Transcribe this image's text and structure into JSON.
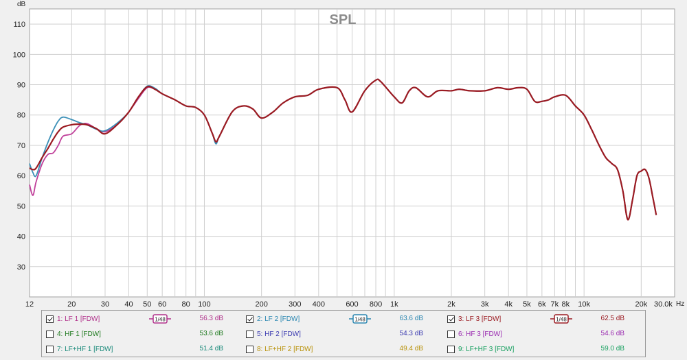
{
  "chart_data": {
    "type": "line",
    "title": "SPL",
    "ylabel": "dB",
    "xlabel": "Hz",
    "xscale": "log",
    "xlim": [
      12,
      30000
    ],
    "ylim": [
      20,
      115
    ],
    "grid": true,
    "y_ticks": [
      "30",
      "40",
      "50",
      "60",
      "70",
      "80",
      "90",
      "100",
      "110"
    ],
    "x_ticks": [
      "12",
      "20",
      "30",
      "40",
      "50",
      "60",
      "80",
      "100",
      "200",
      "300",
      "400",
      "600",
      "800",
      "1k",
      "2k",
      "3k",
      "4k",
      "5k",
      "6k",
      "7k",
      "8k",
      "10k",
      "20k",
      "30.0k"
    ],
    "series": [
      {
        "name": "1: LF 1 [FDW]",
        "color": "#c0409a",
        "points": [
          [
            12,
            57
          ],
          [
            12.5,
            53.5
          ],
          [
            13,
            58
          ],
          [
            14,
            64
          ],
          [
            15,
            67
          ],
          [
            16,
            67.5
          ],
          [
            17,
            70
          ],
          [
            18,
            73
          ],
          [
            20,
            73.8
          ],
          [
            22,
            76.5
          ],
          [
            24,
            77.2
          ],
          [
            27,
            75.5
          ],
          [
            30,
            74.5
          ],
          [
            35,
            77
          ],
          [
            40,
            81
          ],
          [
            45,
            85.5
          ],
          [
            50,
            89
          ],
          [
            55,
            88.5
          ],
          [
            60,
            87
          ],
          [
            70,
            85
          ],
          [
            80,
            83
          ],
          [
            90,
            82.5
          ],
          [
            100,
            80
          ],
          [
            110,
            74
          ],
          [
            115,
            71
          ],
          [
            120,
            73
          ],
          [
            140,
            81
          ],
          [
            160,
            83
          ],
          [
            180,
            82
          ],
          [
            200,
            79
          ],
          [
            230,
            81
          ],
          [
            260,
            84
          ],
          [
            300,
            86
          ],
          [
            350,
            86.5
          ],
          [
            400,
            88.5
          ],
          [
            500,
            89
          ],
          [
            550,
            85
          ],
          [
            600,
            81
          ],
          [
            700,
            88
          ],
          [
            800,
            91.5
          ],
          [
            850,
            91
          ],
          [
            1000,
            86
          ],
          [
            1100,
            84
          ],
          [
            1200,
            88
          ],
          [
            1300,
            89
          ],
          [
            1500,
            86
          ],
          [
            1700,
            88
          ],
          [
            2000,
            88
          ],
          [
            2200,
            88.5
          ],
          [
            2500,
            88
          ],
          [
            3000,
            88
          ],
          [
            3500,
            89
          ],
          [
            4000,
            88.5
          ],
          [
            4500,
            89
          ],
          [
            5000,
            88.5
          ],
          [
            5500,
            84.5
          ],
          [
            6000,
            84.5
          ],
          [
            6500,
            85
          ],
          [
            7000,
            86
          ],
          [
            8000,
            86.5
          ],
          [
            9000,
            83
          ],
          [
            10000,
            80
          ],
          [
            11000,
            75
          ],
          [
            12000,
            70
          ],
          [
            13000,
            66
          ],
          [
            14000,
            64
          ],
          [
            15000,
            62
          ],
          [
            16000,
            55
          ],
          [
            17000,
            45.5
          ],
          [
            18000,
            52
          ],
          [
            19000,
            60
          ],
          [
            20000,
            61.5
          ],
          [
            21000,
            62
          ],
          [
            22000,
            59
          ],
          [
            23000,
            53
          ],
          [
            24000,
            47
          ]
        ]
      },
      {
        "name": "2: LF 2 [FDW]",
        "color": "#3a8fb7",
        "points": [
          [
            12,
            64
          ],
          [
            12.5,
            61
          ],
          [
            13,
            60
          ],
          [
            14,
            66
          ],
          [
            15,
            71
          ],
          [
            16,
            75
          ],
          [
            17,
            78
          ],
          [
            18,
            79.3
          ],
          [
            20,
            78.5
          ],
          [
            22,
            77.5
          ],
          [
            24,
            76.8
          ],
          [
            27,
            75.3
          ],
          [
            30,
            74.8
          ],
          [
            35,
            77.5
          ],
          [
            40,
            81
          ],
          [
            45,
            86
          ],
          [
            50,
            89.5
          ],
          [
            55,
            88.8
          ],
          [
            60,
            87
          ],
          [
            70,
            85
          ],
          [
            80,
            83
          ],
          [
            90,
            82.5
          ],
          [
            100,
            80
          ],
          [
            110,
            74
          ],
          [
            115,
            70.5
          ],
          [
            120,
            73
          ],
          [
            140,
            81
          ],
          [
            160,
            83
          ],
          [
            180,
            82
          ],
          [
            200,
            79
          ],
          [
            230,
            81
          ],
          [
            260,
            84
          ],
          [
            300,
            86
          ],
          [
            350,
            86.5
          ],
          [
            400,
            88.5
          ],
          [
            500,
            89
          ],
          [
            550,
            85
          ],
          [
            600,
            81
          ],
          [
            700,
            88
          ],
          [
            800,
            91.5
          ],
          [
            850,
            91
          ],
          [
            1000,
            86
          ],
          [
            1100,
            84
          ],
          [
            1200,
            88
          ],
          [
            1300,
            89
          ],
          [
            1500,
            86
          ],
          [
            1700,
            88
          ],
          [
            2000,
            88
          ],
          [
            2200,
            88.5
          ],
          [
            2500,
            88
          ],
          [
            3000,
            88
          ],
          [
            3500,
            89
          ],
          [
            4000,
            88.5
          ],
          [
            4500,
            89
          ],
          [
            5000,
            88.5
          ],
          [
            5500,
            84.5
          ],
          [
            6000,
            84.5
          ],
          [
            6500,
            85
          ],
          [
            7000,
            86
          ],
          [
            8000,
            86.5
          ],
          [
            9000,
            83
          ],
          [
            10000,
            80
          ],
          [
            11000,
            75
          ],
          [
            12000,
            70
          ],
          [
            13000,
            66
          ],
          [
            14000,
            64
          ],
          [
            15000,
            62
          ],
          [
            16000,
            55
          ],
          [
            17000,
            45.5
          ],
          [
            18000,
            52
          ],
          [
            19000,
            60
          ],
          [
            20000,
            61.5
          ],
          [
            21000,
            62
          ],
          [
            22000,
            59
          ],
          [
            23000,
            53
          ],
          [
            24000,
            47
          ]
        ]
      },
      {
        "name": "3: LF 3 [FDW]",
        "color": "#9b1b22",
        "points": [
          [
            12,
            62.5
          ],
          [
            12.5,
            62
          ],
          [
            13,
            62.5
          ],
          [
            14,
            66
          ],
          [
            15,
            69
          ],
          [
            16,
            72
          ],
          [
            17,
            74.5
          ],
          [
            18,
            76
          ],
          [
            20,
            76.8
          ],
          [
            22,
            77
          ],
          [
            24,
            76.8
          ],
          [
            27,
            75.5
          ],
          [
            30,
            73.8
          ],
          [
            35,
            77
          ],
          [
            40,
            81
          ],
          [
            45,
            86
          ],
          [
            50,
            89.3
          ],
          [
            55,
            88.5
          ],
          [
            60,
            87
          ],
          [
            70,
            85
          ],
          [
            80,
            83
          ],
          [
            90,
            82.5
          ],
          [
            100,
            80
          ],
          [
            110,
            74
          ],
          [
            115,
            71.2
          ],
          [
            120,
            73
          ],
          [
            140,
            81
          ],
          [
            160,
            83
          ],
          [
            180,
            82
          ],
          [
            200,
            79
          ],
          [
            230,
            81
          ],
          [
            260,
            84
          ],
          [
            300,
            86
          ],
          [
            350,
            86.5
          ],
          [
            400,
            88.5
          ],
          [
            500,
            89
          ],
          [
            550,
            85
          ],
          [
            600,
            81
          ],
          [
            700,
            88
          ],
          [
            800,
            91.5
          ],
          [
            850,
            91
          ],
          [
            1000,
            86
          ],
          [
            1100,
            84
          ],
          [
            1200,
            88
          ],
          [
            1300,
            89
          ],
          [
            1500,
            86
          ],
          [
            1700,
            88
          ],
          [
            2000,
            88
          ],
          [
            2200,
            88.5
          ],
          [
            2500,
            88
          ],
          [
            3000,
            88
          ],
          [
            3500,
            89
          ],
          [
            4000,
            88.5
          ],
          [
            4500,
            89
          ],
          [
            5000,
            88.5
          ],
          [
            5500,
            84.5
          ],
          [
            6000,
            84.5
          ],
          [
            6500,
            85
          ],
          [
            7000,
            86
          ],
          [
            8000,
            86.5
          ],
          [
            9000,
            83
          ],
          [
            10000,
            80
          ],
          [
            11000,
            75
          ],
          [
            12000,
            70
          ],
          [
            13000,
            66
          ],
          [
            14000,
            64
          ],
          [
            15000,
            62
          ],
          [
            16000,
            55
          ],
          [
            17000,
            45.5
          ],
          [
            18000,
            52
          ],
          [
            19000,
            60
          ],
          [
            20000,
            61.5
          ],
          [
            21000,
            62
          ],
          [
            22000,
            59
          ],
          [
            23000,
            53
          ],
          [
            24000,
            47
          ]
        ]
      }
    ]
  },
  "legend": {
    "rows": [
      [
        {
          "label": "1: LF 1 [FDW]",
          "checked": true,
          "color": "#b0308a",
          "smooth": "1/48",
          "value": "56.3 dB",
          "value_color": "#b0308a"
        },
        {
          "label": "2: LF 2 [FDW]",
          "checked": true,
          "color": "#2a86b0",
          "smooth": "1/48",
          "value": "63.6 dB",
          "value_color": "#2a86b0"
        },
        {
          "label": "3: LF 3 [FDW]",
          "checked": true,
          "color": "#9b1b22",
          "smooth": "1/48",
          "value": "62.5 dB",
          "value_color": "#9b1b22"
        }
      ],
      [
        {
          "label": "4: HF 1 [FDW]",
          "checked": false,
          "color": "#1f7a1f",
          "value": "53.6 dB",
          "value_color": "#1f7a1f"
        },
        {
          "label": "5: HF 2 [FDW]",
          "checked": false,
          "color": "#3a3ab0",
          "value": "54.3 dB",
          "value_color": "#3a3ab0"
        },
        {
          "label": "6: HF 3 [FDW]",
          "checked": false,
          "color": "#9a2ab0",
          "value": "54.6 dB",
          "value_color": "#9a2ab0"
        }
      ],
      [
        {
          "label": "7: LF+HF 1 [FDW]",
          "checked": false,
          "color": "#1a8a7a",
          "value": "51.4 dB",
          "value_color": "#1a8a7a"
        },
        {
          "label": "8: LF+HF 2 [FDW]",
          "checked": false,
          "color": "#b8920a",
          "value": "49.4 dB",
          "value_color": "#b8920a"
        },
        {
          "label": "9: LF+HF 3 [FDW]",
          "checked": false,
          "color": "#18a060",
          "value": "59.0 dB",
          "value_color": "#18a060"
        }
      ]
    ]
  }
}
